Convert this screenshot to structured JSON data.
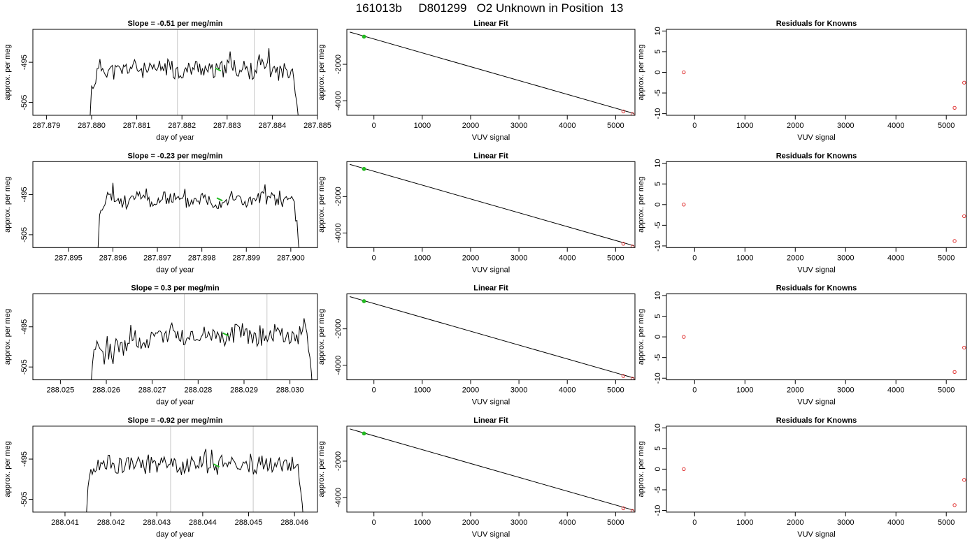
{
  "figure_title": "161013b     D801299   O2 Unknown in Position  13",
  "colors": {
    "trace": "#000000",
    "green": "#22bb22",
    "red": "#dd2222",
    "frame": "#000000",
    "vline": "#c8c8c8"
  },
  "chart_data": [
    {
      "type": "line",
      "title": "Slope =  -0.51  per meg/min",
      "xlabel": "day of year",
      "ylabel": "approx. per meg",
      "xlim": [
        287.8787,
        287.885
      ],
      "ylim": [
        -508.2,
        -486.8
      ],
      "xticks": [
        "287.879",
        "287.880",
        "287.881",
        "287.882",
        "287.883",
        "287.884",
        "287.885"
      ],
      "yticks": [
        "-495",
        "-505"
      ],
      "ytick_values": [
        -495,
        -505
      ],
      "trace": {
        "start": 287.88,
        "end": 287.8846,
        "level": -496.8,
        "amp": 2.2,
        "seed": 11
      },
      "vlines": [
        287.8819,
        287.8836
      ],
      "green_point": [
        287.8828,
        -496.8
      ]
    },
    {
      "type": "line",
      "title": "Linear Fit",
      "xlabel": "VUV signal",
      "ylabel": "approx. per meg",
      "xlim": [
        -560,
        5400
      ],
      "ylim": [
        -4800,
        -80
      ],
      "xticks": [
        "0",
        "1000",
        "2000",
        "3000",
        "4000",
        "5000"
      ],
      "ytick_values": [
        -2000,
        -4000
      ],
      "yticks": [
        "-2000",
        "-4000"
      ],
      "line": [
        [
          -500,
          -230
        ],
        [
          5380,
          -4700
        ]
      ],
      "green_points": [
        [
          -205,
          -480
        ]
      ],
      "red_points": [
        [
          -205,
          -480
        ],
        [
          5160,
          -4590
        ],
        [
          5350,
          -4740
        ]
      ]
    },
    {
      "type": "scatter",
      "title": "Residuals for Knowns",
      "xlabel": "VUV signal",
      "ylabel": "approx. per meg",
      "xlim": [
        -560,
        5400
      ],
      "ylim": [
        -10.4,
        10.4
      ],
      "xticks": [
        "0",
        "1000",
        "2000",
        "3000",
        "4000",
        "5000"
      ],
      "ytick_values": [
        10,
        5,
        0,
        -5,
        -10
      ],
      "yticks": [
        "10",
        "5",
        "0",
        "-5",
        "-10"
      ],
      "points": [
        [
          -215,
          0
        ],
        [
          5165,
          -8.6
        ],
        [
          5355,
          -2.5
        ]
      ]
    },
    {
      "type": "line",
      "title": "Slope =  -0.23  per meg/min",
      "xlabel": "day of year",
      "ylabel": "approx. per meg",
      "xlim": [
        287.8942,
        287.9006
      ],
      "ylim": [
        -508.2,
        -486.8
      ],
      "xticks": [
        "287.895",
        "287.896",
        "287.897",
        "287.898",
        "287.899",
        "287.900"
      ],
      "yticks": [
        "-495",
        "-505"
      ],
      "ytick_values": [
        -495,
        -505
      ],
      "trace": {
        "start": 287.8957,
        "end": 287.9002,
        "level": -496.3,
        "amp": 1.8,
        "seed": 23
      },
      "vlines": [
        287.8975,
        287.8993
      ],
      "green_point": [
        287.8984,
        -496.2
      ]
    },
    {
      "type": "line",
      "title": "Linear Fit",
      "xlabel": "VUV signal",
      "ylabel": "approx. per meg",
      "xlim": [
        -560,
        5400
      ],
      "ylim": [
        -4800,
        -80
      ],
      "xticks": [
        "0",
        "1000",
        "2000",
        "3000",
        "4000",
        "5000"
      ],
      "ytick_values": [
        -2000,
        -4000
      ],
      "yticks": [
        "-2000",
        "-4000"
      ],
      "line": [
        [
          -500,
          -230
        ],
        [
          5380,
          -4700
        ]
      ],
      "green_points": [
        [
          -205,
          -480
        ]
      ],
      "red_points": [
        [
          -205,
          -480
        ],
        [
          5160,
          -4590
        ],
        [
          5350,
          -4740
        ]
      ]
    },
    {
      "type": "scatter",
      "title": "Residuals for Knowns",
      "xlabel": "VUV signal",
      "ylabel": "approx. per meg",
      "xlim": [
        -560,
        5400
      ],
      "ylim": [
        -10.4,
        10.4
      ],
      "xticks": [
        "0",
        "1000",
        "2000",
        "3000",
        "4000",
        "5000"
      ],
      "ytick_values": [
        10,
        5,
        0,
        -5,
        -10
      ],
      "yticks": [
        "10",
        "5",
        "0",
        "-5",
        "-10"
      ],
      "points": [
        [
          -215,
          0
        ],
        [
          5165,
          -8.8
        ],
        [
          5355,
          -2.8
        ]
      ]
    },
    {
      "type": "line",
      "title": "Slope =  0.3  per meg/min",
      "xlabel": "day of year",
      "ylabel": "approx. per meg",
      "xlim": [
        288.0244,
        288.0306
      ],
      "ylim": [
        -508.2,
        -486.8
      ],
      "xticks": [
        "288.025",
        "288.026",
        "288.027",
        "288.028",
        "288.029",
        "288.030"
      ],
      "yticks": [
        "-495",
        "-505"
      ],
      "ytick_values": [
        -495,
        -505
      ],
      "trace": {
        "start": 288.0257,
        "end": 288.0305,
        "level": -497.0,
        "amp": 2.4,
        "seed": 37,
        "ramp": true
      },
      "vlines": [
        288.0277,
        288.0295
      ],
      "green_point": [
        288.0286,
        -496.9
      ]
    },
    {
      "type": "line",
      "title": "Linear Fit",
      "xlabel": "VUV signal",
      "ylabel": "approx. per meg",
      "xlim": [
        -560,
        5400
      ],
      "ylim": [
        -4800,
        -80
      ],
      "xticks": [
        "0",
        "1000",
        "2000",
        "3000",
        "4000",
        "5000"
      ],
      "ytick_values": [
        -2000,
        -4000
      ],
      "yticks": [
        "-2000",
        "-4000"
      ],
      "line": [
        [
          -500,
          -230
        ],
        [
          5380,
          -4700
        ]
      ],
      "green_points": [
        [
          -205,
          -480
        ]
      ],
      "red_points": [
        [
          -205,
          -480
        ],
        [
          5160,
          -4590
        ],
        [
          5350,
          -4740
        ]
      ]
    },
    {
      "type": "scatter",
      "title": "Residuals for Knowns",
      "xlabel": "VUV signal",
      "ylabel": "approx. per meg",
      "xlim": [
        -560,
        5400
      ],
      "ylim": [
        -10.4,
        10.4
      ],
      "xticks": [
        "0",
        "1000",
        "2000",
        "3000",
        "4000",
        "5000"
      ],
      "ytick_values": [
        10,
        5,
        0,
        -5,
        -10
      ],
      "yticks": [
        "10",
        "5",
        "0",
        "-5",
        "-10"
      ],
      "points": [
        [
          -215,
          0
        ],
        [
          5165,
          -8.5
        ],
        [
          5355,
          -2.6
        ]
      ]
    },
    {
      "type": "line",
      "title": "Slope =  -0.92  per meg/min",
      "xlabel": "day of year",
      "ylabel": "approx. per meg",
      "xlim": [
        288.0403,
        288.0465
      ],
      "ylim": [
        -508.2,
        -486.8
      ],
      "xticks": [
        "288.041",
        "288.042",
        "288.043",
        "288.044",
        "288.045",
        "288.046"
      ],
      "yticks": [
        "-495",
        "-505"
      ],
      "ytick_values": [
        -495,
        -505
      ],
      "trace": {
        "start": 288.0415,
        "end": 288.0462,
        "level": -496.5,
        "amp": 2.0,
        "seed": 53
      },
      "vlines": [
        288.0433,
        288.0451
      ],
      "green_point": [
        288.0443,
        -496.6
      ]
    },
    {
      "type": "line",
      "title": "Linear Fit",
      "xlabel": "VUV signal",
      "ylabel": "approx. per meg",
      "xlim": [
        -560,
        5400
      ],
      "ylim": [
        -4800,
        -80
      ],
      "xticks": [
        "0",
        "1000",
        "2000",
        "3000",
        "4000",
        "5000"
      ],
      "ytick_values": [
        -2000,
        -4000
      ],
      "yticks": [
        "-2000",
        "-4000"
      ],
      "line": [
        [
          -500,
          -230
        ],
        [
          5380,
          -4700
        ]
      ],
      "green_points": [
        [
          -205,
          -480
        ]
      ],
      "red_points": [
        [
          -205,
          -480
        ],
        [
          5160,
          -4590
        ],
        [
          5350,
          -4740
        ]
      ]
    },
    {
      "type": "scatter",
      "title": "Residuals for Knowns",
      "xlabel": "VUV signal",
      "ylabel": "approx. per meg",
      "xlim": [
        -560,
        5400
      ],
      "ylim": [
        -10.4,
        10.4
      ],
      "xticks": [
        "0",
        "1000",
        "2000",
        "3000",
        "4000",
        "5000"
      ],
      "ytick_values": [
        10,
        5,
        0,
        -5,
        -10
      ],
      "yticks": [
        "10",
        "5",
        "0",
        "-5",
        "-10"
      ],
      "points": [
        [
          -215,
          0
        ],
        [
          5165,
          -8.7
        ],
        [
          5355,
          -2.6
        ]
      ]
    }
  ]
}
